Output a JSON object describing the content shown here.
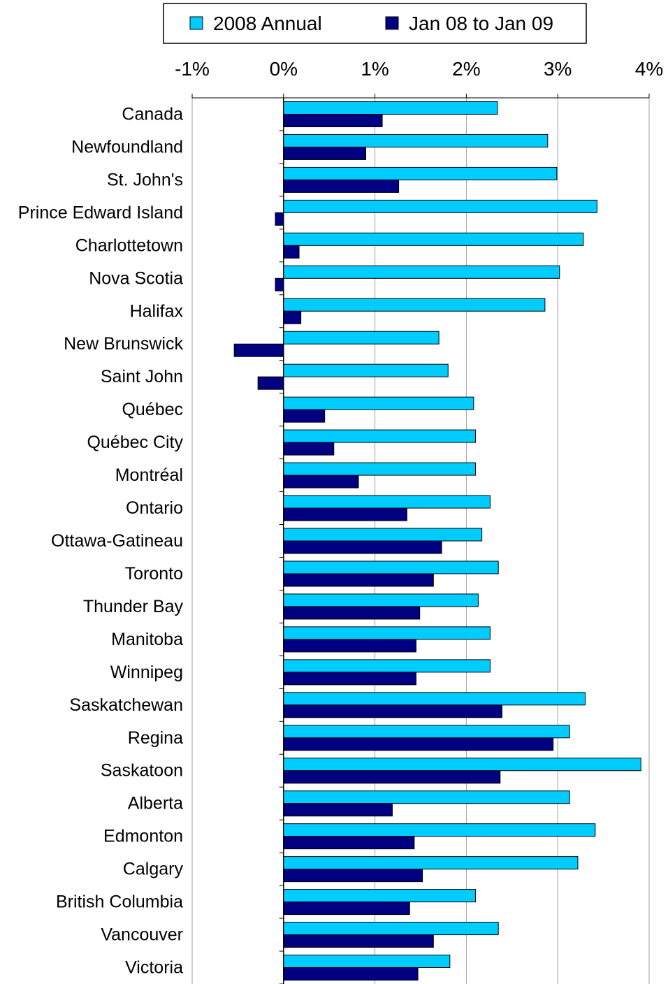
{
  "chart_data": {
    "type": "bar",
    "orientation": "horizontal",
    "categories": [
      "Canada",
      "Newfoundland",
      "St. John's",
      "Prince Edward Island",
      "Charlottetown",
      "Nova Scotia",
      "Halifax",
      "New Brunswick",
      "Saint John",
      "Québec",
      "Québec City",
      "Montréal",
      "Ontario",
      "Ottawa-Gatineau",
      "Toronto",
      "Thunder Bay",
      "Manitoba",
      "Winnipeg",
      "Saskatchewan",
      "Regina",
      "Saskatoon",
      "Alberta",
      "Edmonton",
      "Calgary",
      "British Columbia",
      "Vancouver",
      "Victoria"
    ],
    "series": [
      {
        "name": "2008 Annual",
        "color": "#00CCFF",
        "values": [
          2.34,
          2.89,
          2.99,
          3.43,
          3.28,
          3.02,
          2.86,
          1.7,
          1.8,
          2.08,
          2.1,
          2.1,
          2.26,
          2.17,
          2.35,
          2.13,
          2.26,
          2.26,
          3.3,
          3.13,
          3.91,
          3.13,
          3.41,
          3.22,
          2.1,
          2.35,
          1.82
        ]
      },
      {
        "name": "Jan 08 to Jan 09",
        "color": "#000080",
        "values": [
          1.08,
          0.9,
          1.26,
          -0.09,
          0.17,
          -0.09,
          0.19,
          -0.54,
          -0.28,
          0.45,
          0.55,
          0.82,
          1.35,
          1.73,
          1.64,
          1.49,
          1.45,
          1.45,
          2.39,
          2.95,
          2.37,
          1.19,
          1.43,
          1.52,
          1.38,
          1.64,
          1.47
        ]
      }
    ],
    "xlim": [
      -1,
      4
    ],
    "tick_labels": [
      "-1%",
      "0%",
      "1%",
      "2%",
      "3%",
      "4%"
    ],
    "tick_axis_position": "top",
    "grid": true,
    "legend_position": "top"
  }
}
